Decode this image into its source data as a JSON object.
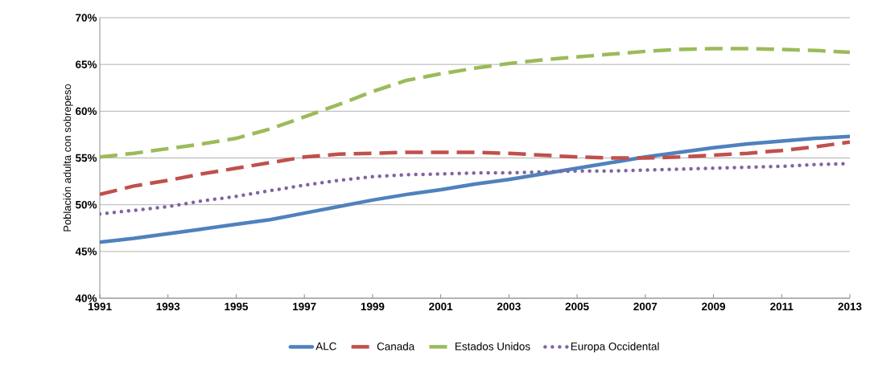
{
  "chart_data": {
    "type": "line",
    "ylabel": "Población adulta con sobrepeso",
    "x": [
      1991,
      1992,
      1993,
      1994,
      1995,
      1996,
      1997,
      1998,
      1999,
      2000,
      2001,
      2002,
      2003,
      2004,
      2005,
      2006,
      2007,
      2008,
      2009,
      2010,
      2011,
      2012,
      2013
    ],
    "series": [
      {
        "name": "ALC",
        "color": "#4f81bd",
        "line_style": "solid",
        "values": [
          46.0,
          46.4,
          46.9,
          47.4,
          47.9,
          48.4,
          49.1,
          49.8,
          50.5,
          51.1,
          51.6,
          52.2,
          52.7,
          53.3,
          53.9,
          54.5,
          55.1,
          55.6,
          56.1,
          56.5,
          56.8,
          57.1,
          57.3
        ]
      },
      {
        "name": "Canada",
        "color": "#c0504d",
        "line_style": "dashed",
        "values": [
          51.1,
          52.0,
          52.6,
          53.3,
          53.9,
          54.5,
          55.1,
          55.4,
          55.5,
          55.6,
          55.6,
          55.6,
          55.5,
          55.3,
          55.1,
          55.0,
          55.0,
          55.1,
          55.3,
          55.5,
          55.8,
          56.2,
          56.7
        ]
      },
      {
        "name": "Estados Unidos",
        "color": "#9bbb59",
        "line_style": "dashed",
        "values": [
          55.1,
          55.5,
          56.0,
          56.5,
          57.1,
          58.1,
          59.4,
          60.7,
          62.1,
          63.3,
          64.0,
          64.6,
          65.1,
          65.5,
          65.8,
          66.1,
          66.4,
          66.6,
          66.7,
          66.7,
          66.6,
          66.5,
          66.3
        ]
      },
      {
        "name": "Europa Occidental",
        "color": "#8064a2",
        "line_style": "dotted",
        "values": [
          49.0,
          49.4,
          49.8,
          50.4,
          50.9,
          51.5,
          52.1,
          52.6,
          53.0,
          53.2,
          53.3,
          53.4,
          53.4,
          53.5,
          53.6,
          53.6,
          53.7,
          53.8,
          53.9,
          54.0,
          54.1,
          54.3,
          54.4
        ]
      }
    ],
    "xlim": [
      1991,
      2013
    ],
    "xticks": [
      1991,
      1993,
      1995,
      1997,
      1999,
      2001,
      2003,
      2005,
      2007,
      2009,
      2011,
      2013
    ],
    "ylim": [
      40,
      70
    ],
    "yticks": [
      {
        "value": 40,
        "label": "40%"
      },
      {
        "value": 45,
        "label": "45%"
      },
      {
        "value": 50,
        "label": "50%"
      },
      {
        "value": 55,
        "label": "55%"
      },
      {
        "value": 60,
        "label": "60%"
      },
      {
        "value": 65,
        "label": "65%"
      },
      {
        "value": 70,
        "label": "70%"
      }
    ],
    "grid": "y",
    "legend": "bottom",
    "marker": "none"
  }
}
